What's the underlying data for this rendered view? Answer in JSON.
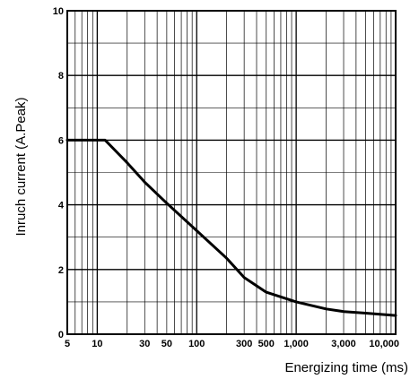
{
  "chart_data": {
    "type": "line",
    "title": "",
    "xlabel": "Energizing time (ms)",
    "ylabel": "Inruch current (A.Peak)",
    "xscale": "log",
    "xlim": [
      5,
      10000
    ],
    "ylim": [
      0,
      10
    ],
    "x_ticks": [
      {
        "value": 5,
        "label": "5"
      },
      {
        "value": 10,
        "label": "10"
      },
      {
        "value": 30,
        "label": "30"
      },
      {
        "value": 50,
        "label": "50"
      },
      {
        "value": 100,
        "label": "100"
      },
      {
        "value": 300,
        "label": "300"
      },
      {
        "value": 500,
        "label": "500"
      },
      {
        "value": 1000,
        "label": "1,000"
      },
      {
        "value": 3000,
        "label": "3,000"
      },
      {
        "value": 10000,
        "label": "10,000"
      }
    ],
    "y_ticks": [
      {
        "value": 0,
        "label": "0"
      },
      {
        "value": 2,
        "label": "2"
      },
      {
        "value": 4,
        "label": "4"
      },
      {
        "value": 6,
        "label": "6"
      },
      {
        "value": 8,
        "label": "8"
      },
      {
        "value": 10,
        "label": "10"
      }
    ],
    "grid": true,
    "series": [
      {
        "x": [
          5,
          7,
          10,
          12,
          20,
          30,
          50,
          100,
          200,
          300,
          500,
          1000,
          2000,
          3000,
          5000,
          10000
        ],
        "y": [
          6.0,
          6.0,
          6.0,
          6.0,
          5.3,
          4.7,
          4.05,
          3.2,
          2.35,
          1.75,
          1.3,
          1.0,
          0.78,
          0.7,
          0.65,
          0.58
        ]
      }
    ],
    "colors": {
      "line": "#000000",
      "grid": "#000000",
      "background": "#ffffff"
    }
  }
}
